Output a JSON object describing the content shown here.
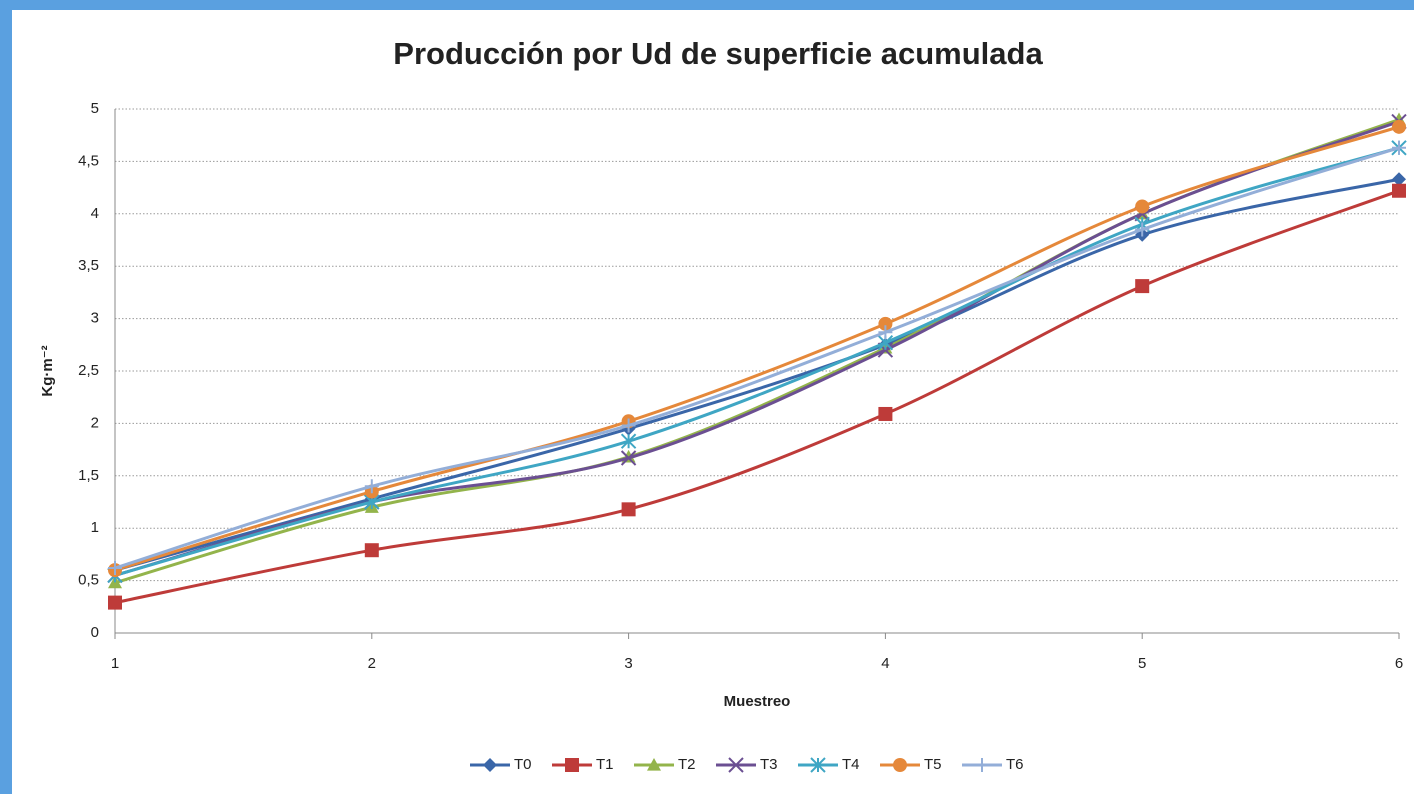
{
  "chart_data": {
    "type": "line",
    "title": "Producción por Ud de superficie acumulada",
    "x_label": "Muestreo",
    "y_label": "Kg·m⁻²",
    "x": [
      1,
      2,
      3,
      4,
      5,
      6
    ],
    "xlim": [
      1,
      6
    ],
    "xticks": [
      1,
      2,
      3,
      4,
      5,
      6
    ],
    "ylim": [
      0,
      5
    ],
    "yticks": [
      0,
      {
        "value": 0.5,
        "label": "0,5"
      },
      1,
      {
        "value": 1.5,
        "label": "1,5"
      },
      2,
      {
        "value": 2.5,
        "label": "2,5"
      },
      3,
      {
        "value": 3.5,
        "label": "3,5"
      },
      4,
      {
        "value": 4.5,
        "label": "4,5"
      },
      5
    ],
    "grid": true,
    "legend": "bottom",
    "smooth": true,
    "series": [
      {
        "name": "T0",
        "color": "#3a66a8",
        "marker": "diamond",
        "values": [
          0.6,
          1.28,
          1.95,
          2.75,
          3.8,
          4.33
        ]
      },
      {
        "name": "T1",
        "color": "#be3b39",
        "marker": "square",
        "values": [
          0.29,
          0.79,
          1.18,
          2.09,
          3.31,
          4.22
        ]
      },
      {
        "name": "T2",
        "color": "#93b44b",
        "marker": "triangle",
        "values": [
          0.48,
          1.2,
          1.68,
          2.72,
          4.0,
          4.9
        ]
      },
      {
        "name": "T3",
        "color": "#6b4f92",
        "marker": "x",
        "values": [
          0.55,
          1.25,
          1.67,
          2.7,
          4.0,
          4.88
        ]
      },
      {
        "name": "T4",
        "color": "#3fa6c4",
        "marker": "star",
        "values": [
          0.55,
          1.25,
          1.83,
          2.77,
          3.9,
          4.63
        ]
      },
      {
        "name": "T5",
        "color": "#e5883a",
        "marker": "circle",
        "values": [
          0.6,
          1.35,
          2.02,
          2.95,
          4.07,
          4.83
        ]
      },
      {
        "name": "T6",
        "color": "#93aed8",
        "marker": "plus",
        "values": [
          0.62,
          1.4,
          1.98,
          2.87,
          3.85,
          4.63
        ]
      }
    ]
  }
}
